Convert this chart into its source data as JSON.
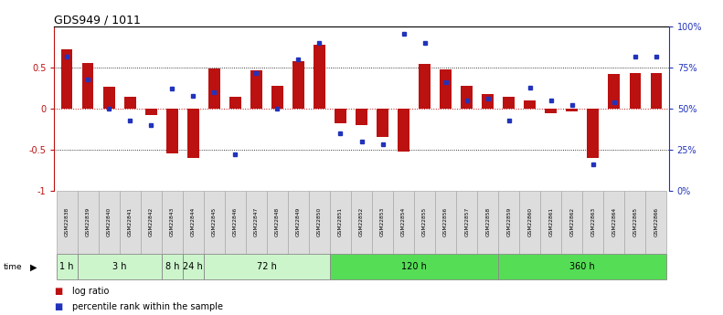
{
  "title": "GDS949 / 1011",
  "samples": [
    "GSM22838",
    "GSM22839",
    "GSM22840",
    "GSM22841",
    "GSM22842",
    "GSM22843",
    "GSM22844",
    "GSM22845",
    "GSM22846",
    "GSM22847",
    "GSM22848",
    "GSM22849",
    "GSM22850",
    "GSM22851",
    "GSM22852",
    "GSM22853",
    "GSM22854",
    "GSM22855",
    "GSM22856",
    "GSM22857",
    "GSM22858",
    "GSM22859",
    "GSM22860",
    "GSM22861",
    "GSM22862",
    "GSM22863",
    "GSM22864",
    "GSM22865",
    "GSM22866"
  ],
  "log_ratio": [
    0.72,
    0.56,
    0.27,
    0.15,
    -0.08,
    -0.55,
    -0.6,
    0.49,
    0.15,
    0.47,
    0.28,
    0.58,
    0.78,
    -0.18,
    -0.2,
    -0.35,
    -0.52,
    0.55,
    0.48,
    0.28,
    0.18,
    0.15,
    0.1,
    -0.05,
    -0.03,
    -0.6,
    0.42,
    0.44,
    0.44
  ],
  "percentile_raw": [
    82,
    68,
    50,
    43,
    40,
    62,
    58,
    60,
    22,
    72,
    50,
    80,
    90,
    35,
    30,
    28,
    96,
    90,
    66,
    55,
    56,
    43,
    63,
    55,
    52,
    16,
    54,
    82,
    82
  ],
  "time_groups": [
    {
      "label": "1 h",
      "start": 0,
      "end": 1,
      "color": "#ccf5cc"
    },
    {
      "label": "3 h",
      "start": 1,
      "end": 5,
      "color": "#ccf5cc"
    },
    {
      "label": "8 h",
      "start": 5,
      "end": 6,
      "color": "#ccf5cc"
    },
    {
      "label": "24 h",
      "start": 6,
      "end": 7,
      "color": "#ccf5cc"
    },
    {
      "label": "72 h",
      "start": 7,
      "end": 13,
      "color": "#ccf5cc"
    },
    {
      "label": "120 h",
      "start": 13,
      "end": 21,
      "color": "#55dd55"
    },
    {
      "label": "360 h",
      "start": 21,
      "end": 29,
      "color": "#55dd55"
    }
  ],
  "bar_color": "#bb1111",
  "dot_color": "#2233bb",
  "bg_color": "#ffffff",
  "sample_box_color": "#dddddd",
  "sample_box_edge": "#aaaaaa",
  "time_box_edge": "#888888"
}
